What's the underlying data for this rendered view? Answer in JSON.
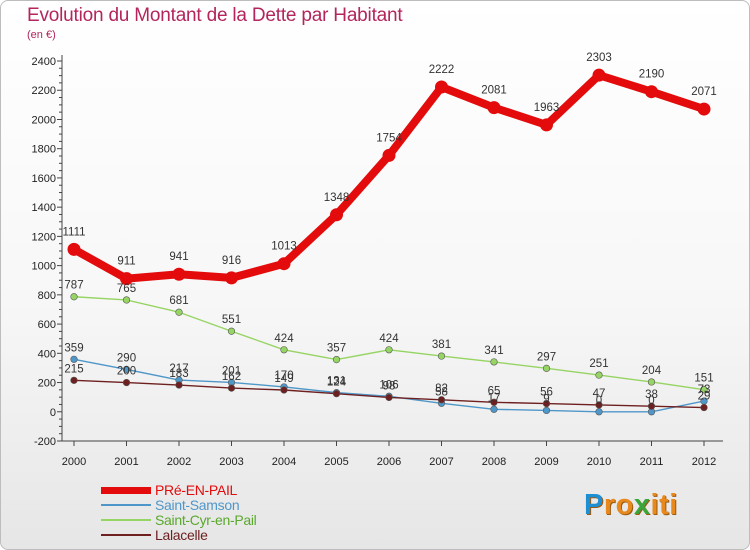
{
  "title": "Evolution du Montant de la Dette par Habitant",
  "unit": "(en €)",
  "brand": {
    "letters": [
      {
        "ch": "P",
        "color": "#1f8fd4"
      },
      {
        "ch": "r",
        "color": "#e7891c"
      },
      {
        "ch": "o",
        "color": "#e7891c"
      },
      {
        "ch": "x",
        "color": "#3aa63a"
      },
      {
        "ch": "i",
        "color": "#e7891c"
      },
      {
        "ch": "t",
        "color": "#e7891c"
      },
      {
        "ch": "i",
        "color": "#e7891c"
      }
    ]
  },
  "chart_data": {
    "type": "line",
    "title": "Evolution du Montant de la Dette par Habitant",
    "subtitle": "(en €)",
    "x": [
      "2000",
      "2001",
      "2002",
      "2003",
      "2004",
      "2005",
      "2006",
      "2007",
      "2008",
      "2009",
      "2010",
      "2011",
      "2012"
    ],
    "ylim": [
      -200,
      2400
    ],
    "yticks": [
      -200,
      0,
      200,
      400,
      600,
      800,
      1000,
      1200,
      1400,
      1600,
      1800,
      2000,
      2200,
      2400
    ],
    "grid": false,
    "legend_position": "bottom-left",
    "series": [
      {
        "name": "PRé-EN-PAIL",
        "color": "#e30b0b",
        "values": [
          1111,
          911,
          941,
          916,
          1013,
          1348,
          1754,
          2222,
          2081,
          1963,
          2303,
          2190,
          2071
        ],
        "labels": [
          "1111",
          "911",
          "941",
          "916",
          "1013",
          "1348",
          "1754",
          "2222",
          "2081",
          "1963",
          "2303",
          "2190",
          "2071"
        ]
      },
      {
        "name": "Saint-Samson",
        "color": "#4f97c9",
        "values": [
          359,
          290,
          217,
          201,
          170,
          131,
          106,
          58,
          17,
          9,
          0,
          0,
          73
        ],
        "labels": [
          "359",
          "290",
          "217",
          "201",
          "170",
          "131",
          "106",
          "58",
          "17",
          "9",
          "0",
          "0",
          "73"
        ]
      },
      {
        "name": "Saint-Cyr-en-Pail",
        "color": "#96d463",
        "values": [
          787,
          765,
          681,
          551,
          424,
          357,
          424,
          381,
          341,
          297,
          251,
          204,
          151
        ],
        "labels": [
          "787",
          "765",
          "681",
          "551",
          "424",
          "357",
          "424",
          "381",
          "341",
          "297",
          "251",
          "204",
          "151"
        ]
      },
      {
        "name": "Lalacelle",
        "color": "#6e2020",
        "values": [
          215,
          200,
          183,
          162,
          149,
          124,
          98,
          82,
          65,
          56,
          47,
          38,
          29
        ],
        "labels": [
          "215",
          "200",
          "183",
          "162",
          "149",
          "124",
          "98",
          "82",
          "65",
          "56",
          "47",
          "38",
          "29"
        ]
      }
    ]
  }
}
